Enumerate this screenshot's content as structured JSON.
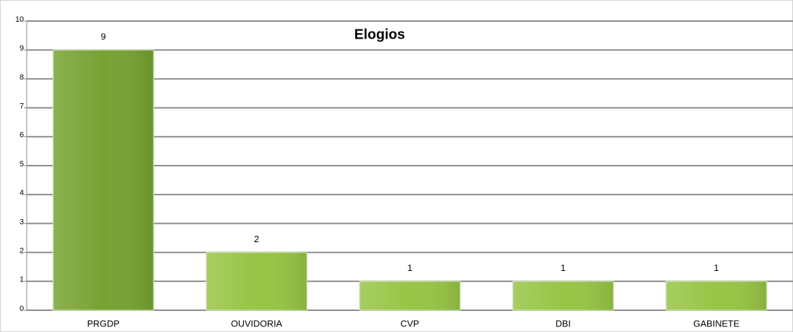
{
  "chart_data": {
    "type": "bar",
    "title": "Elogios",
    "categories": [
      "PRGDP",
      "OUVIDORIA",
      "CVP",
      "DBI",
      "GABINETE"
    ],
    "values": [
      9,
      2,
      1,
      1,
      1
    ],
    "colors": [
      "#77a233",
      "#97c545",
      "#97c545",
      "#97c545",
      "#97c545"
    ],
    "ylim": [
      0,
      10
    ],
    "yticks": [
      0,
      1,
      2,
      3,
      4,
      5,
      6,
      7,
      8,
      9,
      10
    ],
    "grid": true
  }
}
